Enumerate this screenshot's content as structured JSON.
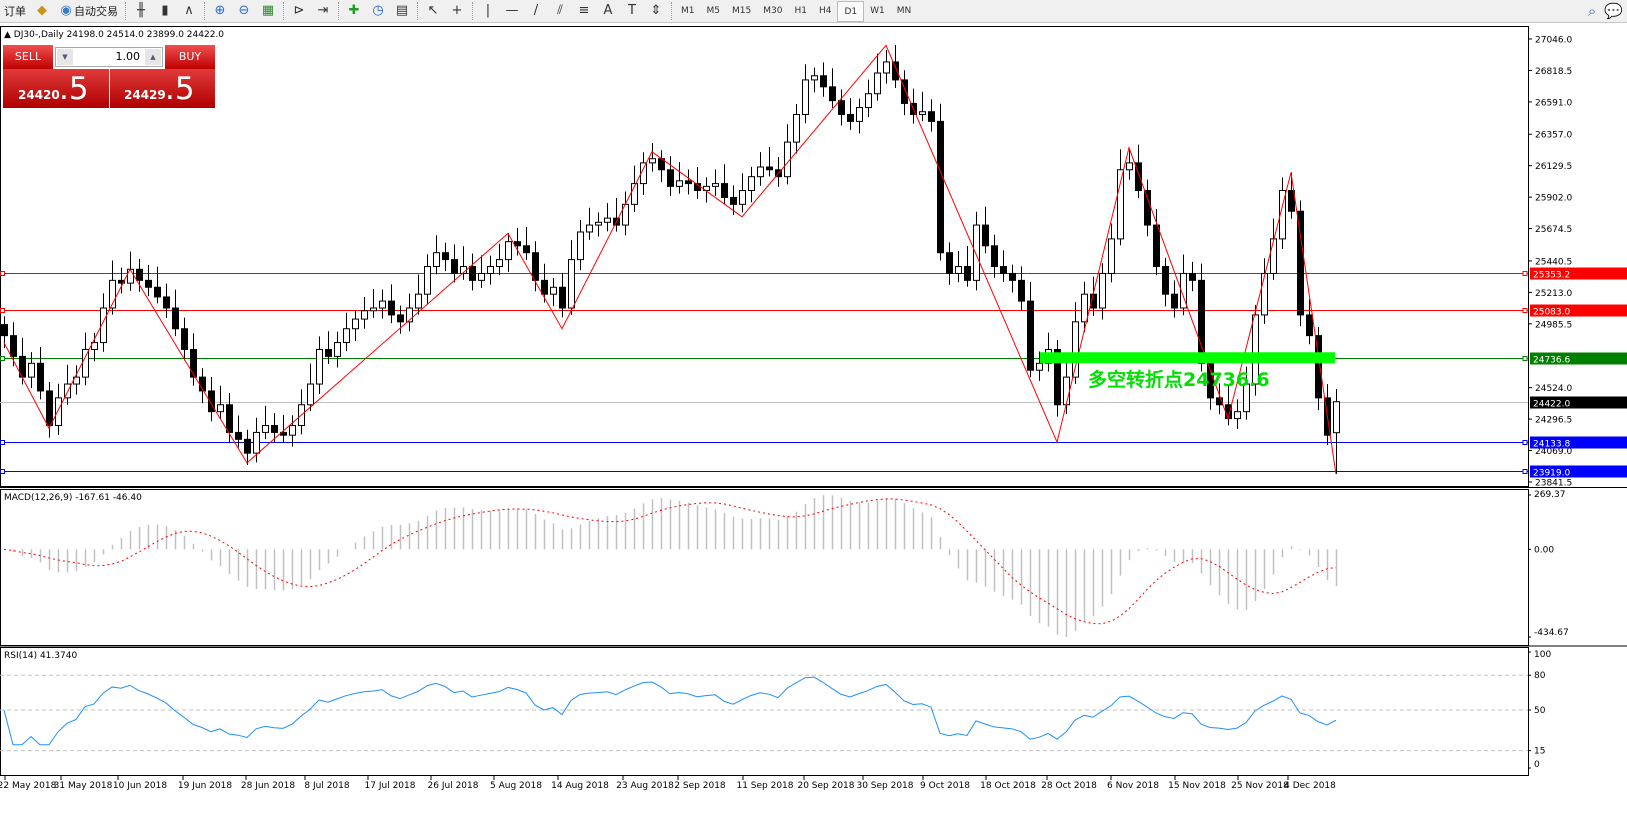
{
  "toolbar": {
    "items": [
      {
        "icon": "order-icon",
        "label": "订单"
      },
      {
        "icon": "expert-icon",
        "label": ""
      },
      {
        "icon": "autotrading-icon",
        "label": "自动交易"
      },
      {
        "icon": "bar-chart-icon"
      },
      {
        "icon": "candlestick-icon"
      },
      {
        "icon": "line-chart-icon"
      },
      {
        "icon": "zoom-in-icon"
      },
      {
        "icon": "zoom-out-icon"
      },
      {
        "icon": "tile-windows-icon"
      },
      {
        "icon": "chart-shift-icon"
      },
      {
        "icon": "autoscroll-icon"
      },
      {
        "icon": "indicators-icon"
      },
      {
        "icon": "periods-icon"
      },
      {
        "icon": "templates-icon"
      },
      {
        "icon": "cursor-icon"
      },
      {
        "icon": "crosshair-icon"
      },
      {
        "icon": "vertical-line-icon"
      },
      {
        "icon": "horizontal-line-icon"
      },
      {
        "icon": "trendline-icon"
      },
      {
        "icon": "equidistant-channel-icon"
      },
      {
        "icon": "fibonacci-icon"
      },
      {
        "icon": "text-icon"
      },
      {
        "icon": "text-label-icon"
      },
      {
        "icon": "arrows-icon"
      }
    ],
    "timeframes": [
      "M1",
      "M5",
      "M15",
      "M30",
      "H1",
      "H4",
      "D1",
      "W1",
      "MN"
    ],
    "active_timeframe": "D1"
  },
  "chart": {
    "header": "DJ30-,Daily  24198.0 24514.0 23899.0 24422.0",
    "trade_panel": {
      "sell_label": "SELL",
      "buy_label": "BUY",
      "lot": "1.00",
      "sell_main": "24420",
      "sell_frac": ".5",
      "buy_main": "24429",
      "buy_frac": ".5"
    },
    "annotation": "多空转折点24736.6",
    "colors": {
      "up": "#ffffff",
      "down": "#000000",
      "zigzag": "#ff0000",
      "macd_hist": "#c0c0c0",
      "macd_signal": "#ff0000",
      "rsi": "#1e90ff",
      "turning_band": "#00ff00"
    }
  },
  "chart_data": [
    {
      "type": "candlestick",
      "symbol": "DJ30-",
      "timeframe": "Daily",
      "ylim": [
        23841.5,
        27046.0
      ],
      "y_ticks": [
        "27046.0",
        "26818.5",
        "26591.0",
        "26357.0",
        "26129.5",
        "25902.0",
        "25674.5",
        "25440.5",
        "25213.0",
        "24985.5",
        "24524.0",
        "24296.5",
        "24069.0",
        "23841.5"
      ],
      "x_ticks": [
        "22 May 2018",
        "31 May 2018",
        "10 Jun 2018",
        "19 Jun 2018",
        "28 Jun 2018",
        "8 Jul 2018",
        "17 Jul 2018",
        "26 Jul 2018",
        "5 Aug 2018",
        "14 Aug 2018",
        "23 Aug 2018",
        "2 Sep 2018",
        "11 Sep 2018",
        "20 Sep 2018",
        "30 Sep 2018",
        "9 Oct 2018",
        "18 Oct 2018",
        "28 Oct 2018",
        "6 Nov 2018",
        "15 Nov 2018",
        "25 Nov 2018",
        "4 Dec 2018"
      ],
      "closes": [
        24900,
        24750,
        24600,
        24700,
        24500,
        24250,
        24450,
        24550,
        24600,
        24800,
        24850,
        25100,
        25300,
        25280,
        25380,
        25300,
        25250,
        25180,
        25100,
        24950,
        24800,
        24600,
        24500,
        24350,
        24400,
        24200,
        24150,
        24050,
        24200,
        24250,
        24200,
        24180,
        24250,
        24400,
        24550,
        24800,
        24750,
        24850,
        24950,
        25020,
        25080,
        25100,
        25150,
        25050,
        25000,
        25100,
        25200,
        25400,
        25500,
        25450,
        25350,
        25400,
        25300,
        25350,
        25400,
        25450,
        25580,
        25550,
        25500,
        25300,
        25200,
        25250,
        25100,
        25450,
        25650,
        25700,
        25720,
        25750,
        25700,
        25850,
        26000,
        26150,
        26180,
        26100,
        25980,
        26020,
        26000,
        25950,
        25980,
        26000,
        25900,
        25850,
        25950,
        26050,
        26120,
        26100,
        26050,
        26300,
        26500,
        26750,
        26780,
        26700,
        26600,
        26500,
        26450,
        26550,
        26650,
        26800,
        26880,
        26750,
        26580,
        26500,
        26520,
        26450,
        25500,
        25350,
        25400,
        25300,
        25700,
        25550,
        25400,
        25350,
        25300,
        25150,
        24650,
        24700,
        24800,
        24400,
        24600,
        25000,
        25200,
        25100,
        25350,
        25600,
        26100,
        26150,
        25950,
        25700,
        25400,
        25200,
        25100,
        25350,
        25300,
        24700,
        24450,
        24400,
        24300,
        24350,
        24550,
        25050,
        25350,
        25600,
        25950,
        25800,
        25050,
        24900,
        24450,
        24180,
        24422
      ],
      "last_bar": {
        "open": 24198.0,
        "high": 24514.0,
        "low": 23899.0,
        "close": 24422.0
      },
      "zigzag": [
        [
          0,
          24850
        ],
        [
          5,
          24230
        ],
        [
          14,
          25380
        ],
        [
          27,
          23980
        ],
        [
          56,
          25640
        ],
        [
          62,
          24950
        ],
        [
          72,
          26230
        ],
        [
          82,
          25760
        ],
        [
          98,
          27000
        ],
        [
          117,
          24130
        ],
        [
          125,
          26260
        ],
        [
          136,
          24300
        ],
        [
          143,
          26080
        ],
        [
          148,
          23899
        ]
      ],
      "levels": [
        {
          "price": 25353.2,
          "label": "25353.2",
          "color": "#ff0000"
        },
        {
          "price": 25083.0,
          "label": "25083.0",
          "color": "#ff0000"
        },
        {
          "price": 24736.6,
          "label": "24736.6",
          "color": "#008000"
        },
        {
          "price": 24422.0,
          "label": "24422.0",
          "color": "#000000",
          "line": "#c0c0c0"
        },
        {
          "price": 24133.8,
          "label": "24133.8",
          "color": "#0000ff"
        },
        {
          "price": 23919.0,
          "label": "23919.0",
          "color": "#0000ff"
        }
      ]
    },
    {
      "type": "bar",
      "title": "MACD(12,26,9) -167.61 -46.40",
      "params": [
        12,
        26,
        9
      ],
      "main": -167.61,
      "signal": -46.4,
      "ylim": [
        -434.67,
        269.37
      ],
      "y_ticks": [
        "269.37",
        "0.00",
        "-434.67"
      ]
    },
    {
      "type": "line",
      "title": "RSI(14) 41.3740",
      "period": 14,
      "value": 41.374,
      "ylim": [
        0,
        100
      ],
      "y_ticks": [
        "100",
        "80",
        "50",
        "15",
        "0"
      ],
      "levels": [
        80,
        50,
        15
      ]
    }
  ]
}
